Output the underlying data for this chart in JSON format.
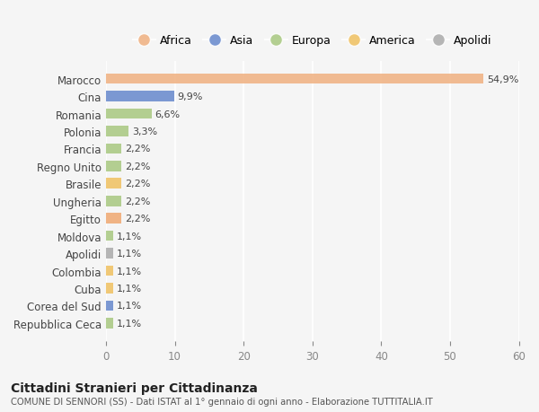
{
  "categories": [
    "Repubblica Ceca",
    "Corea del Sud",
    "Cuba",
    "Colombia",
    "Apolidi",
    "Moldova",
    "Egitto",
    "Ungheria",
    "Brasile",
    "Regno Unito",
    "Francia",
    "Polonia",
    "Romania",
    "Cina",
    "Marocco"
  ],
  "values": [
    1.1,
    1.1,
    1.1,
    1.1,
    1.1,
    1.1,
    2.2,
    2.2,
    2.2,
    2.2,
    2.2,
    3.3,
    6.6,
    9.9,
    54.9
  ],
  "labels": [
    "1,1%",
    "1,1%",
    "1,1%",
    "1,1%",
    "1,1%",
    "1,1%",
    "2,2%",
    "2,2%",
    "2,2%",
    "2,2%",
    "2,2%",
    "3,3%",
    "6,6%",
    "9,9%",
    "54,9%"
  ],
  "colors": [
    "#a8c880",
    "#6688cc",
    "#f0c060",
    "#f0c060",
    "#aaaaaa",
    "#a8c880",
    "#f0a870",
    "#a8c880",
    "#f0c060",
    "#a8c880",
    "#a8c880",
    "#a8c880",
    "#a8c880",
    "#6688cc",
    "#f0b080"
  ],
  "continent_colors": {
    "Africa": "#f0b080",
    "Asia": "#6688cc",
    "Europa": "#a8c880",
    "America": "#f0c060",
    "Apolidi": "#aaaaaa"
  },
  "legend_items": [
    "Africa",
    "Asia",
    "Europa",
    "America",
    "Apolidi"
  ],
  "title": "Cittadini Stranieri per Cittadinanza",
  "subtitle": "COMUNE DI SENNORI (SS) - Dati ISTAT al 1° gennaio di ogni anno - Elaborazione TUTTITALIA.IT",
  "xlim": [
    0,
    60
  ],
  "xticks": [
    0,
    10,
    20,
    30,
    40,
    50,
    60
  ],
  "bg_color": "#f5f5f5",
  "bar_alpha": 0.85
}
